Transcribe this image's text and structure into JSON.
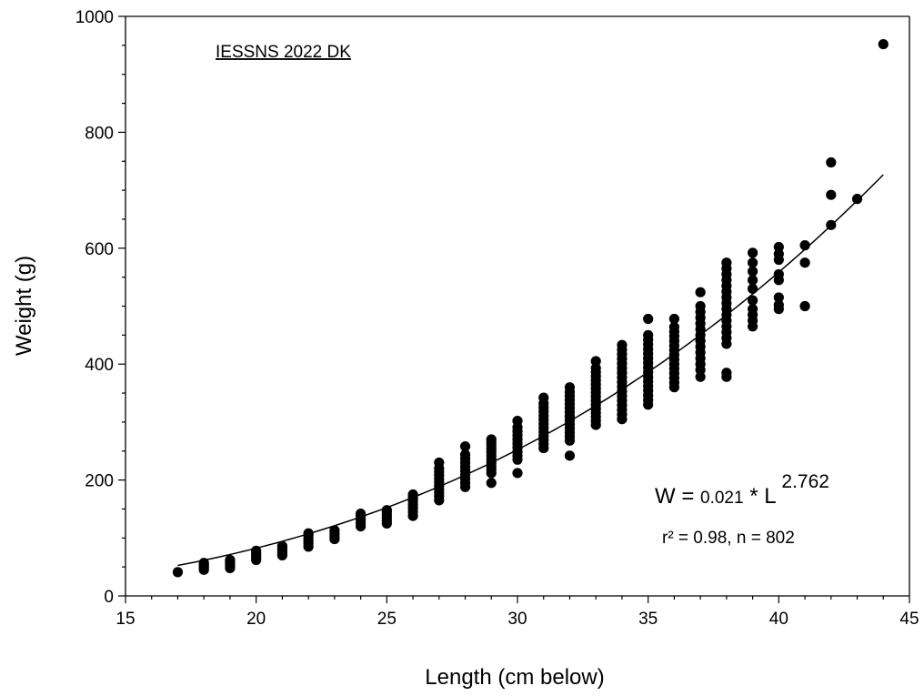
{
  "chart_data": {
    "type": "scatter",
    "annotation_title": "IESSNS 2022 DK",
    "xlabel": "Length (cm below)",
    "ylabel": "Weight (g)",
    "xlim": [
      15,
      45
    ],
    "ylim": [
      0,
      1000
    ],
    "x_ticks": [
      15,
      20,
      25,
      30,
      35,
      40,
      45
    ],
    "y_ticks": [
      0,
      200,
      400,
      600,
      800,
      1000
    ],
    "grid": false,
    "legend": "none",
    "marker_color": "#000000",
    "fit": {
      "label_w": "W = ",
      "coef_text": "0.021",
      "mult_text": " * L ",
      "exp_text": "2.762",
      "stats_text": "r² = 0.98, n = 802",
      "a": 0.021,
      "b": 2.762,
      "x_range": [
        17,
        44
      ]
    },
    "columns": [
      {
        "x": 17,
        "y": [
          41
        ]
      },
      {
        "x": 18,
        "y": [
          45,
          48,
          51,
          54,
          57
        ]
      },
      {
        "x": 19,
        "y": [
          48,
          52,
          56,
          59,
          62
        ]
      },
      {
        "x": 20,
        "y": [
          62,
          66,
          70,
          74,
          78
        ]
      },
      {
        "x": 21,
        "y": [
          70,
          74,
          78,
          82,
          86
        ]
      },
      {
        "x": 22,
        "y": [
          85,
          90,
          95,
          100,
          105,
          108
        ]
      },
      {
        "x": 23,
        "y": [
          98,
          103,
          108,
          113
        ]
      },
      {
        "x": 24,
        "y": [
          120,
          126,
          132,
          138,
          142
        ]
      },
      {
        "x": 25,
        "y": [
          125,
          130,
          135,
          140,
          145,
          148
        ]
      },
      {
        "x": 26,
        "y": [
          138,
          145,
          152,
          158,
          164,
          170,
          175
        ]
      },
      {
        "x": 27,
        "y": [
          165,
          172,
          178,
          184,
          190,
          196,
          202,
          208,
          214,
          220,
          230
        ]
      },
      {
        "x": 28,
        "y": [
          188,
          195,
          202,
          209,
          216,
          223,
          230,
          237,
          244,
          258
        ]
      },
      {
        "x": 29,
        "y": [
          195,
          212,
          218,
          224,
          230,
          236,
          242,
          248,
          254,
          260,
          265,
          270
        ]
      },
      {
        "x": 30,
        "y": [
          212,
          235,
          242,
          249,
          256,
          263,
          270,
          277,
          284,
          291,
          302
        ]
      },
      {
        "x": 31,
        "y": [
          255,
          262,
          269,
          276,
          283,
          290,
          297,
          304,
          311,
          318,
          325,
          332,
          342
        ]
      },
      {
        "x": 32,
        "y": [
          242,
          268,
          275,
          282,
          289,
          296,
          303,
          310,
          317,
          324,
          331,
          338,
          345,
          352,
          360
        ]
      },
      {
        "x": 33,
        "y": [
          295,
          302,
          309,
          316,
          323,
          330,
          337,
          344,
          351,
          358,
          365,
          372,
          379,
          386,
          393,
          405
        ]
      },
      {
        "x": 34,
        "y": [
          305,
          313,
          321,
          329,
          337,
          345,
          353,
          361,
          369,
          377,
          385,
          393,
          401,
          409,
          417,
          425,
          433
        ]
      },
      {
        "x": 35,
        "y": [
          330,
          338,
          346,
          354,
          362,
          370,
          378,
          386,
          394,
          402,
          410,
          418,
          426,
          434,
          442,
          450,
          478
        ]
      },
      {
        "x": 36,
        "y": [
          360,
          368,
          376,
          384,
          392,
          400,
          408,
          416,
          424,
          432,
          440,
          448,
          456,
          464,
          478
        ]
      },
      {
        "x": 37,
        "y": [
          378,
          390,
          400,
          410,
          420,
          430,
          440,
          450,
          460,
          470,
          480,
          490,
          500,
          524
        ]
      },
      {
        "x": 38,
        "y": [
          378,
          385,
          435,
          445,
          455,
          465,
          475,
          485,
          495,
          505,
          515,
          525,
          535,
          545,
          555,
          565,
          575
        ]
      },
      {
        "x": 39,
        "y": [
          465,
          475,
          485,
          495,
          510,
          530,
          545,
          560,
          575,
          592
        ]
      },
      {
        "x": 40,
        "y": [
          495,
          502,
          515,
          545,
          555,
          580,
          590,
          602
        ]
      },
      {
        "x": 41,
        "y": [
          500,
          575,
          605
        ]
      },
      {
        "x": 42,
        "y": [
          640,
          692,
          748
        ]
      },
      {
        "x": 43,
        "y": [
          685
        ]
      },
      {
        "x": 44,
        "y": [
          952
        ]
      }
    ]
  }
}
